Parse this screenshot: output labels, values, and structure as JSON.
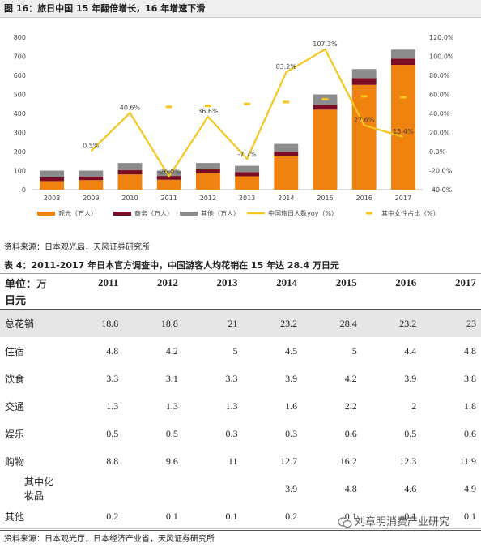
{
  "figure": {
    "title": "图 16：旅日中国 15 年翻倍增长，16 年增速下滑"
  },
  "chart_data": {
    "type": "bar",
    "categories": [
      "2008",
      "2009",
      "2010",
      "2011",
      "2012",
      "2013",
      "2014",
      "2015",
      "2016",
      "2017"
    ],
    "stacked": true,
    "series": [
      {
        "name": "观光（万人）",
        "kind": "bar",
        "color": "#f0820f",
        "values": [
          45,
          50,
          80,
          52,
          85,
          70,
          175,
          420,
          550,
          655
        ]
      },
      {
        "name": "商务（万人）",
        "kind": "bar",
        "color": "#7a0d23",
        "values": [
          20,
          18,
          22,
          20,
          22,
          22,
          24,
          25,
          35,
          33
        ]
      },
      {
        "name": "其他（万人）",
        "kind": "bar",
        "color": "#8c8c8c",
        "values": [
          35,
          32,
          38,
          28,
          33,
          33,
          41,
          55,
          48,
          47
        ]
      },
      {
        "name": "中国旅日人数yoy（%）",
        "kind": "line",
        "axis": "right",
        "color": "#f7c51e",
        "values": [
          0.5,
          0.5,
          40.6,
          -26.0,
          36.6,
          -7.7,
          83.2,
          107.3,
          27.6,
          15.4
        ]
      },
      {
        "name": "其中女性占比（%）",
        "kind": "marker",
        "axis": "right",
        "color": "#f7c51e",
        "values": [
          null,
          null,
          null,
          47,
          48,
          50,
          52,
          55,
          58,
          57
        ]
      }
    ],
    "data_labels": [
      "0.5%",
      "40.6%",
      "-26.0%",
      "36.6%",
      "-7.7%",
      "83.2%",
      "107.3%",
      "27.6%",
      "15.4%"
    ],
    "label_indices": [
      1,
      2,
      3,
      4,
      5,
      6,
      7,
      8,
      9
    ],
    "yleft": {
      "min": 0,
      "max": 800,
      "ticks": [
        "0",
        "100",
        "200",
        "300",
        "400",
        "500",
        "600",
        "700",
        "800"
      ]
    },
    "yright": {
      "min": -40,
      "max": 120,
      "ticks": [
        "-40.0%",
        "-20.0%",
        "0.0%",
        "20.0%",
        "40.0%",
        "60.0%",
        "80.0%",
        "100.0%",
        "120.0%"
      ]
    },
    "legend_position": "bottom",
    "grid": false
  },
  "source1": "资料来源：日本观光局，天风证券研究所",
  "table": {
    "title": "表 4：2011-2017 年日本官方调查中，中国游客人均花销在 15 年达 28.4 万日元",
    "unit_line1": "单位：万",
    "unit_line2": "日元",
    "years": [
      "2011",
      "2012",
      "2013",
      "2014",
      "2015",
      "2016",
      "2017"
    ],
    "rows": [
      {
        "label": "总花销",
        "values": [
          "18.8",
          "18.8",
          "21",
          "23.2",
          "28.4",
          "23.2",
          "23"
        ]
      },
      {
        "label": "住宿",
        "values": [
          "4.8",
          "4.2",
          "5",
          "4.5",
          "5",
          "4.4",
          "4.8"
        ]
      },
      {
        "label": "饮食",
        "values": [
          "3.3",
          "3.1",
          "3.3",
          "3.9",
          "4.2",
          "3.9",
          "3.8"
        ]
      },
      {
        "label": "交通",
        "values": [
          "1.3",
          "1.3",
          "1.3",
          "1.6",
          "2.2",
          "2",
          "1.8"
        ]
      },
      {
        "label": "娱乐",
        "values": [
          "0.5",
          "0.5",
          "0.3",
          "0.3",
          "0.6",
          "0.5",
          "0.6"
        ]
      },
      {
        "label": "购物",
        "values": [
          "8.8",
          "9.6",
          "11",
          "12.7",
          "16.2",
          "12.3",
          "11.9"
        ]
      },
      {
        "label": "其中化妆品",
        "values": [
          "",
          "",
          "",
          "3.9",
          "4.8",
          "4.6",
          "4.9"
        ]
      },
      {
        "label": "其他",
        "values": [
          "0.2",
          "0.1",
          "0.1",
          "0.2",
          "0.1",
          "0.1",
          "0.1"
        ]
      }
    ]
  },
  "source2": "资料来源：日本观光厅，日本经济产业省，天风证券研究所",
  "watermark": "刘章明消费产业研究",
  "wm_icon": "wechat-icon"
}
